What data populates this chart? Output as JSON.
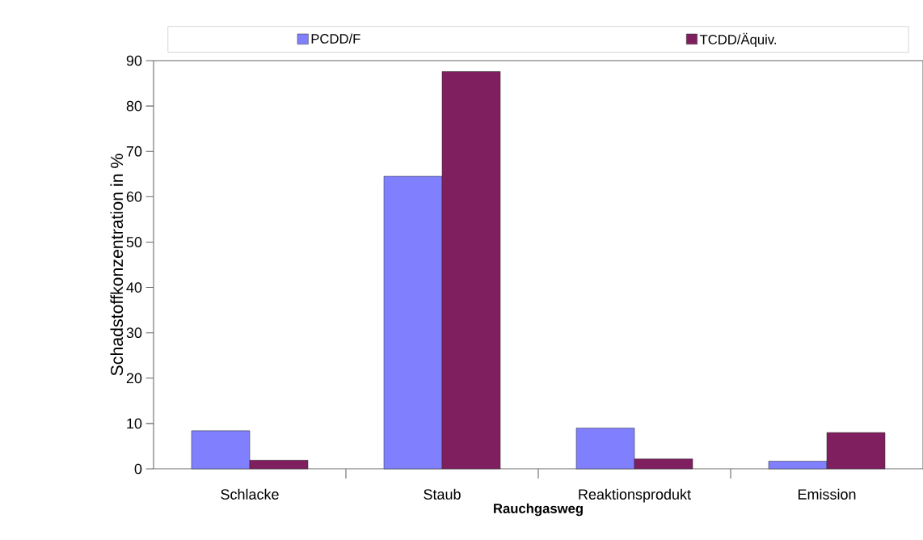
{
  "chart_data": {
    "type": "bar",
    "xlabel": "Rauchgasweg",
    "ylabel": "Schadstoffkonzentration in %",
    "categories": [
      "Schlacke",
      "Staub",
      "Reaktionsprodukt",
      "Emission"
    ],
    "series": [
      {
        "name": "PCDD/F",
        "color": "#8080ff",
        "values": [
          8.4,
          64.5,
          9.0,
          1.7
        ]
      },
      {
        "name": "TCDD/Äquiv.",
        "color": "#7f1f5f",
        "values": [
          1.9,
          87.6,
          2.2,
          8.0
        ]
      }
    ],
    "ylim": [
      0,
      90
    ],
    "yticks": [
      0,
      10,
      20,
      30,
      40,
      50,
      60,
      70,
      80,
      90
    ],
    "grid": false,
    "legend": "top"
  }
}
